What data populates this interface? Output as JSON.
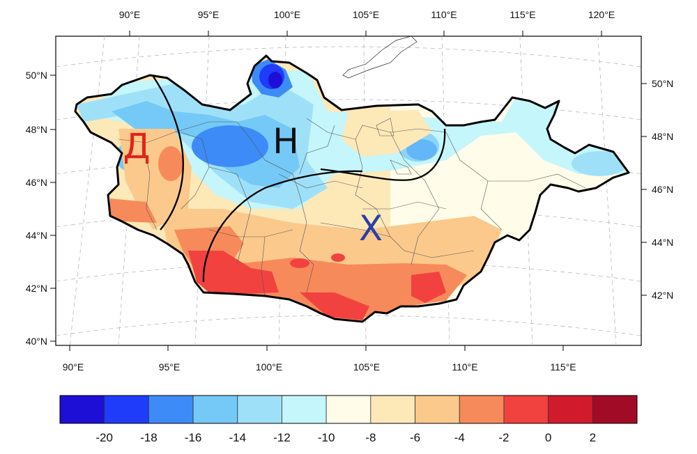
{
  "map": {
    "top_lon_labels": [
      "90°E",
      "95°E",
      "100°E",
      "105°E",
      "110°E",
      "115°E",
      "120°E"
    ],
    "bottom_lon_labels": [
      "90°E",
      "95°E",
      "100°E",
      "105°E",
      "110°E",
      "115°E"
    ],
    "left_lat_labels": [
      "50°N",
      "48°N",
      "46°N",
      "44°N",
      "42°N",
      "40°N"
    ],
    "right_lat_labels": [
      "50°N",
      "48°N",
      "46°N",
      "44°N",
      "42°N"
    ],
    "regions": [
      {
        "id": "west",
        "label": "Д",
        "color": "#e0241b"
      },
      {
        "id": "north",
        "label": "Н",
        "color": "#111111"
      },
      {
        "id": "south",
        "label": "Х",
        "color": "#2a3fa8"
      }
    ]
  },
  "colorbar": {
    "colors": [
      "#1e0fd6",
      "#1f3cfa",
      "#3d8bf7",
      "#74c9f7",
      "#9fe0f9",
      "#c4f6fb",
      "#fffdea",
      "#fde8b8",
      "#fbc98c",
      "#f78a5a",
      "#f2423f",
      "#d11a2c",
      "#a10b25"
    ],
    "labels": [
      "-20",
      "-18",
      "-16",
      "-14",
      "-12",
      "-10",
      "-8",
      "-6",
      "-4",
      "-2",
      "0",
      "2"
    ]
  }
}
